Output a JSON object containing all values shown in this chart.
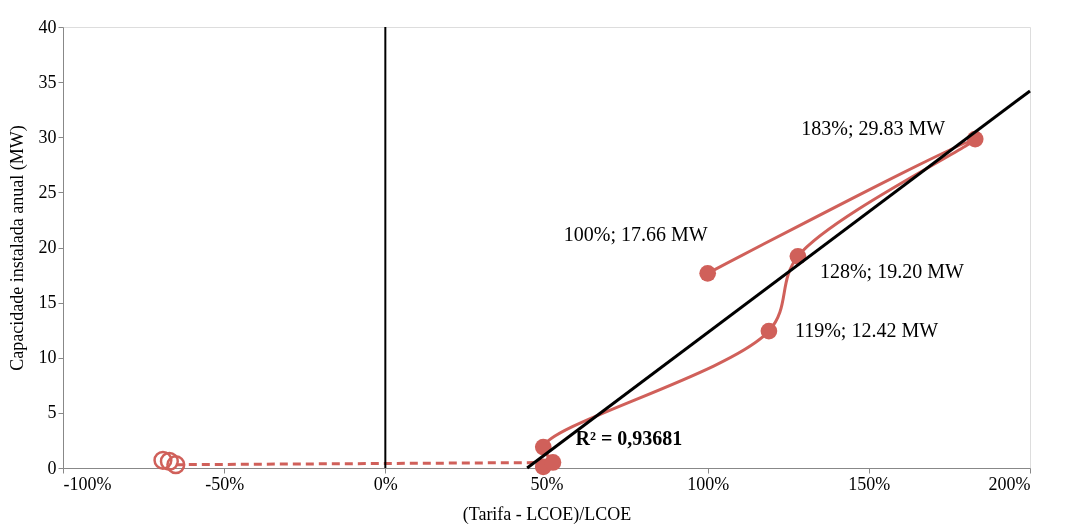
{
  "chart_data": {
    "type": "scatter",
    "xlabel": "(Tarifa - LCOE)/LCOE",
    "ylabel": "Capacidade instalada anual (MW)",
    "xlim": [
      -100,
      200
    ],
    "xticks": [
      {
        "value": -100,
        "label": "-100%"
      },
      {
        "value": -50,
        "label": "-50%"
      },
      {
        "value": 0,
        "label": "0%"
      },
      {
        "value": 50,
        "label": "50%"
      },
      {
        "value": 100,
        "label": "100%"
      },
      {
        "value": 150,
        "label": "150%"
      },
      {
        "value": 200,
        "label": "200%"
      }
    ],
    "ylim": [
      0,
      40
    ],
    "yticks": [
      0,
      5,
      10,
      15,
      20,
      25,
      30,
      35,
      40
    ],
    "grid": false,
    "series": [
      {
        "type": "line",
        "color": "#d0605a",
        "line_style": "dashed",
        "x": [
          -65,
          52
        ],
        "values": [
          0.3,
          0.5
        ]
      },
      {
        "color": "#d0605a",
        "marker": "circle",
        "x": [
          -69,
          -67,
          -65
        ],
        "values": [
          0.7,
          0.6,
          0.3
        ]
      },
      {
        "type": "line",
        "color": "#d0605a",
        "line_style": "solid",
        "marker": "circle",
        "x": [
          49,
          52,
          49,
          119,
          128,
          183,
          100
        ],
        "values": [
          0.1,
          0.5,
          1.9,
          12.42,
          19.2,
          29.83,
          17.66
        ]
      },
      {
        "type": "line",
        "color": "#000000",
        "line_style": "solid",
        "x": [
          44,
          200
        ],
        "values": [
          0,
          34.2
        ]
      }
    ],
    "ref_lines": [
      {
        "axis": "x",
        "value": 0,
        "label": null,
        "color": "#000000"
      }
    ],
    "annotations": [
      {
        "text": "183%; 29.83 MW",
        "x": 183,
        "y": 29.83
      },
      {
        "text": "100%; 17.66 MW",
        "x": 100,
        "y": 17.66
      },
      {
        "text": "128%; 19.20 MW",
        "x": 128,
        "y": 19.2
      },
      {
        "text": "119%; 12.42 MW",
        "x": 119,
        "y": 12.42
      },
      "R² = 0,93681"
    ]
  }
}
